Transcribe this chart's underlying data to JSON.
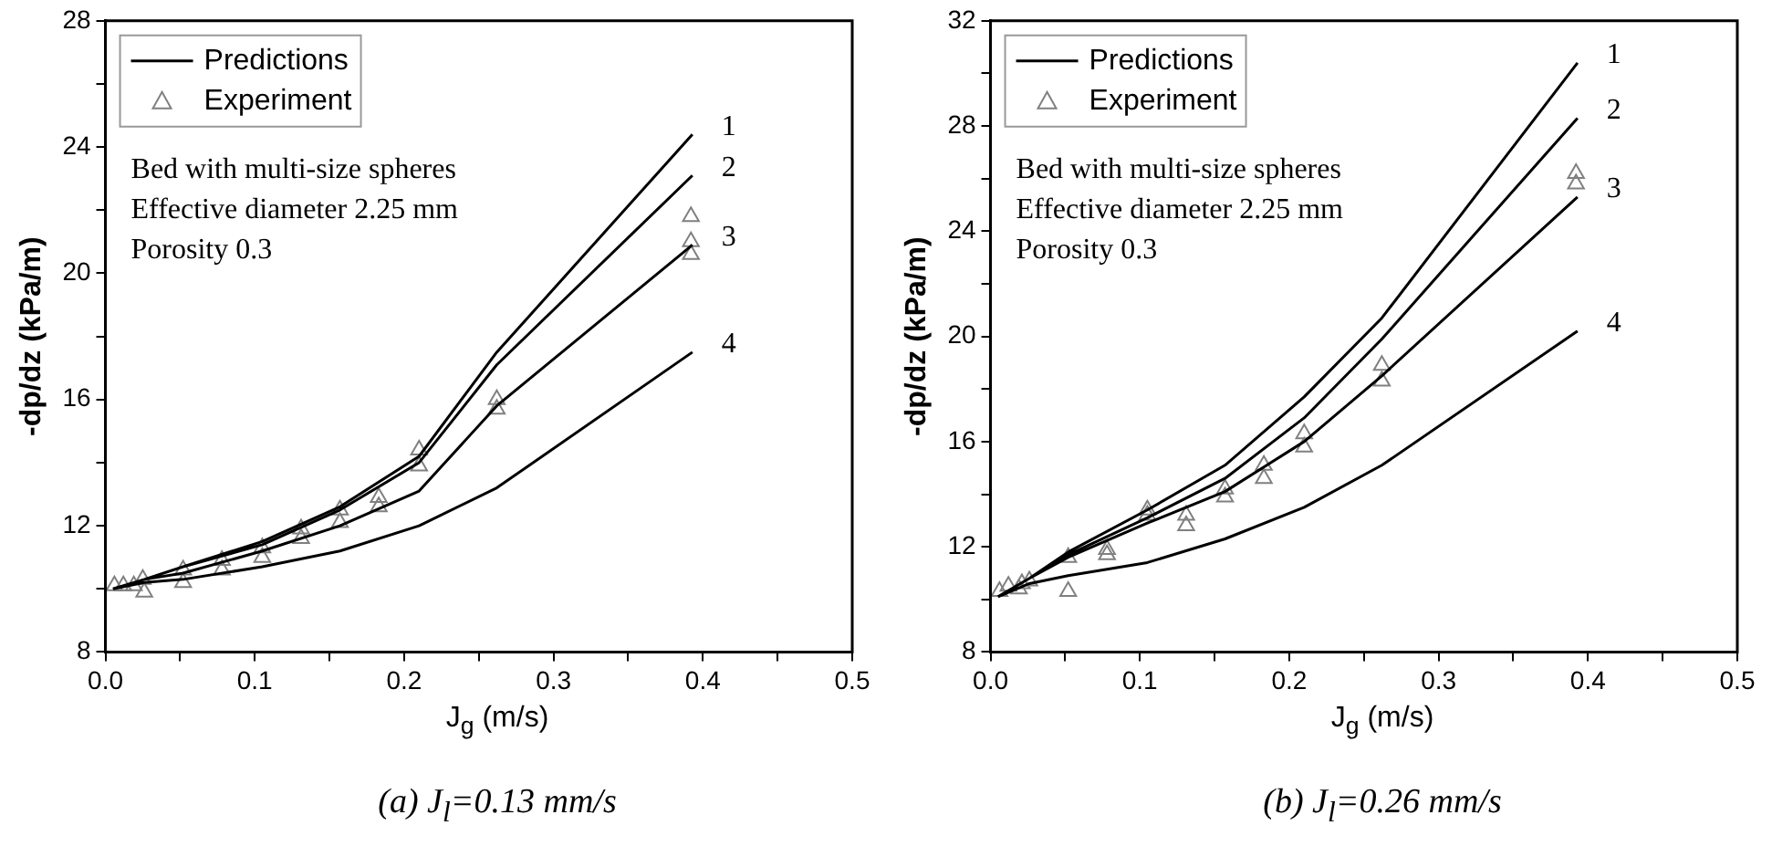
{
  "chart_data": [
    {
      "type": "line",
      "title": "(a) J$_{l}$=0.13 mm/s",
      "xlabel": "J$_{g}$ (m/s)",
      "ylabel": "-dp/dz (kPa/m)",
      "legend": "top left",
      "xlim": [
        0,
        0.5
      ],
      "xticks": [
        {
          "value": 0,
          "label": "0.0"
        },
        {
          "value": 0.05,
          "label": null
        },
        0.1,
        {
          "value": 0.15,
          "label": null
        },
        0.2,
        {
          "value": 0.25,
          "label": null
        },
        0.3,
        {
          "value": 0.35,
          "label": null
        },
        0.4,
        {
          "value": 0.45,
          "label": null
        },
        0.5
      ],
      "ylim": [
        8,
        28
      ],
      "yticks": [
        8,
        {
          "value": 10,
          "label": null
        },
        12,
        {
          "value": 14,
          "label": null
        },
        16,
        {
          "value": 18,
          "label": null
        },
        20,
        {
          "value": 22,
          "label": null
        },
        24,
        {
          "value": 26,
          "label": null
        },
        28
      ],
      "annotations": [
        "Bed with multi-size spheres",
        "Effective diameter 2.25 mm",
        "Porosity 0.3",
        "1",
        "2",
        "3",
        "4"
      ],
      "series": [
        {
          "name": "Predictions",
          "type": "line",
          "marker": "none",
          "color": "#000000",
          "x": [
            0.005,
            0.026,
            0.052,
            0.105,
            0.157,
            0.21,
            0.262,
            0.393,
            null,
            0.005,
            0.026,
            0.052,
            0.105,
            0.157,
            0.21,
            0.262,
            0.393,
            null,
            0.005,
            0.026,
            0.052,
            0.105,
            0.157,
            0.21,
            0.262,
            0.393,
            null,
            0.005,
            0.026,
            0.052,
            0.105,
            0.157,
            0.21,
            0.262,
            0.393
          ],
          "values": [
            10.0,
            10.3,
            10.7,
            11.5,
            12.6,
            14.2,
            17.5,
            24.4,
            null,
            10.0,
            10.3,
            10.7,
            11.4,
            12.5,
            14.0,
            17.1,
            23.1,
            null,
            10.0,
            10.3,
            10.5,
            11.2,
            12.0,
            13.1,
            15.8,
            20.9,
            null,
            10.0,
            10.2,
            10.3,
            10.7,
            11.2,
            12.0,
            13.2,
            17.5
          ]
        },
        {
          "name": "Experiment",
          "type": "scatter",
          "marker": "triangle",
          "color": "#808080",
          "x": [
            0.006,
            0.012,
            0.019,
            0.025,
            0.026,
            0.052,
            0.052,
            0.078,
            0.078,
            0.105,
            0.105,
            0.131,
            0.131,
            0.157,
            0.157,
            0.183,
            0.183,
            0.21,
            0.21,
            0.262,
            0.262,
            0.392,
            0.392,
            0.392
          ],
          "values": [
            10.1,
            10.1,
            10.1,
            10.3,
            9.9,
            10.6,
            10.2,
            10.9,
            10.6,
            11.3,
            11.0,
            11.9,
            11.6,
            12.5,
            12.1,
            12.9,
            12.6,
            14.4,
            13.9,
            16.0,
            15.7,
            21.8,
            21.0,
            20.6
          ]
        }
      ]
    },
    {
      "type": "line",
      "title": "(b) J$_{l}$=0.26 mm/s",
      "xlabel": "J$_{g}$ (m/s)",
      "ylabel": "-dp/dz (kPa/m)",
      "legend": "top left",
      "xlim": [
        0,
        0.5
      ],
      "xticks": [
        {
          "value": 0,
          "label": "0.0"
        },
        {
          "value": 0.05,
          "label": null
        },
        0.1,
        {
          "value": 0.15,
          "label": null
        },
        0.2,
        {
          "value": 0.25,
          "label": null
        },
        0.3,
        {
          "value": 0.35,
          "label": null
        },
        0.4,
        {
          "value": 0.45,
          "label": null
        },
        0.5
      ],
      "ylim": [
        8,
        32
      ],
      "yticks": [
        8,
        {
          "value": 10,
          "label": null
        },
        12,
        {
          "value": 14,
          "label": null
        },
        16,
        {
          "value": 18,
          "label": null
        },
        20,
        {
          "value": 22,
          "label": null
        },
        24,
        {
          "value": 26,
          "label": null
        },
        28,
        {
          "value": 30,
          "label": null
        },
        32
      ],
      "annotations": [
        "Bed with multi-size spheres",
        "Effective diameter 2.25 mm",
        "Porosity 0.3",
        "1",
        "2",
        "3",
        "4"
      ],
      "series": [
        {
          "name": "Predictions",
          "type": "line",
          "marker": "none",
          "color": "#000000",
          "x": [
            0.005,
            0.026,
            0.052,
            0.105,
            0.157,
            0.21,
            0.262,
            0.393,
            null,
            0.005,
            0.026,
            0.052,
            0.105,
            0.157,
            0.21,
            0.262,
            0.393,
            null,
            0.005,
            0.026,
            0.052,
            0.105,
            0.157,
            0.21,
            0.262,
            0.393,
            null,
            0.005,
            0.026,
            0.052,
            0.105,
            0.157,
            0.21,
            0.262,
            0.393
          ],
          "values": [
            10.1,
            10.8,
            11.8,
            13.4,
            15.1,
            17.7,
            20.7,
            30.4,
            null,
            10.1,
            10.8,
            11.7,
            13.1,
            14.6,
            16.9,
            19.9,
            28.3,
            null,
            10.1,
            10.8,
            11.6,
            12.9,
            14.1,
            16.0,
            18.5,
            25.3,
            null,
            10.1,
            10.6,
            10.9,
            11.4,
            12.3,
            13.5,
            15.1,
            20.2
          ]
        },
        {
          "name": "Experiment",
          "type": "scatter",
          "marker": "triangle",
          "color": "#808080",
          "x": [
            0.006,
            0.012,
            0.019,
            0.021,
            0.026,
            0.052,
            0.052,
            0.078,
            0.078,
            0.105,
            0.105,
            0.131,
            0.131,
            0.157,
            0.157,
            0.183,
            0.183,
            0.21,
            0.21,
            0.262,
            0.262,
            0.392,
            0.392
          ],
          "values": [
            10.3,
            10.5,
            10.4,
            10.6,
            10.7,
            11.6,
            10.3,
            11.9,
            11.7,
            13.4,
            13.2,
            13.2,
            12.8,
            14.2,
            13.9,
            15.1,
            14.6,
            16.3,
            15.8,
            18.9,
            18.3,
            26.2,
            25.8
          ]
        }
      ]
    }
  ]
}
